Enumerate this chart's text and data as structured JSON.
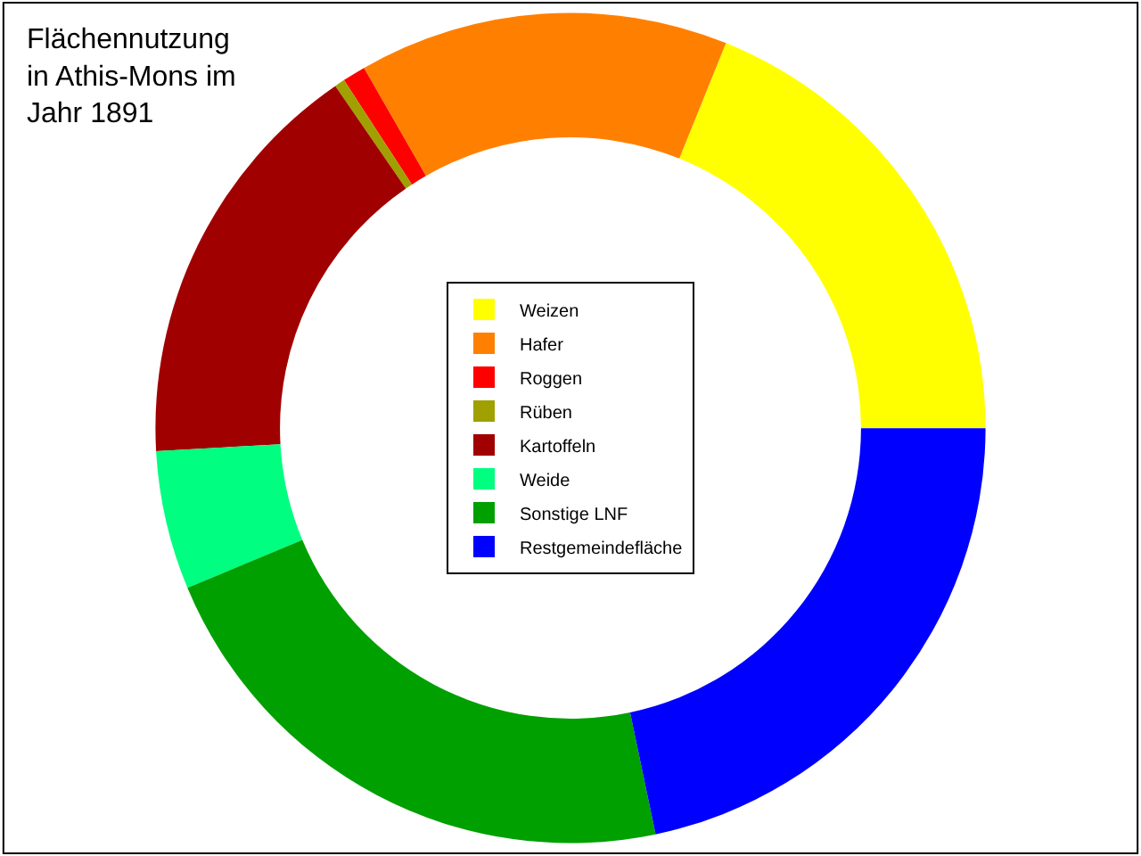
{
  "chart_data": {
    "type": "donut",
    "title": "Flächennutzung\nin Athis-Mons im\nJahr 1891",
    "categories": [
      "Weizen",
      "Hafer",
      "Roggen",
      "Rüben",
      "Kartoffeln",
      "Weide",
      "Sonstige LNF",
      "Restgemeindefläche"
    ],
    "values": [
      18.9,
      14.4,
      0.9,
      0.4,
      16.3,
      5.4,
      22.0,
      21.7
    ],
    "colors": [
      "#ffff00",
      "#ff8000",
      "#ff0000",
      "#a0a000",
      "#a00000",
      "#00ff80",
      "#00a000",
      "#0000ff"
    ],
    "legend": "center"
  }
}
